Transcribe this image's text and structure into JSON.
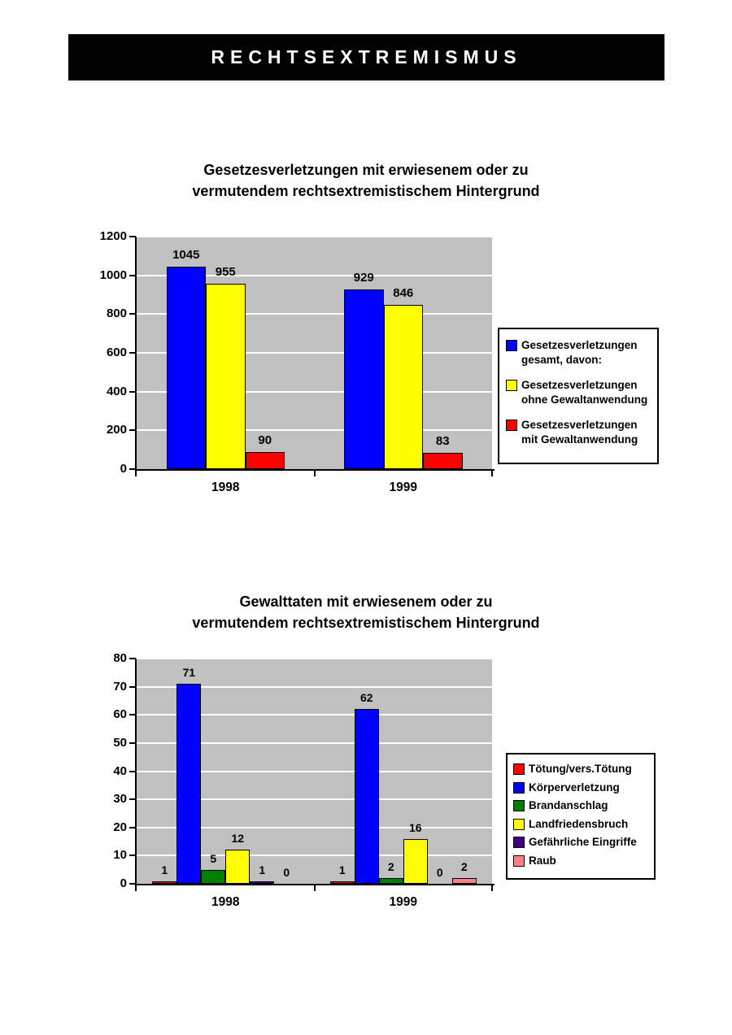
{
  "page": {
    "banner_title": "RECHTSEXTREMISMUS"
  },
  "chart_data": [
    {
      "type": "bar",
      "title": "Gesetzesverletzungen mit erwiesenem oder zu vermutendem rechtsextremistischem Hintergrund",
      "title_lines": [
        "Gesetzesverletzungen mit erwiesenem oder zu",
        "vermutendem rechtsextremistischem Hintergrund"
      ],
      "categories": [
        "1998",
        "1999"
      ],
      "series": [
        {
          "name": "Gesetzesverletzungen gesamt, davon:",
          "color": "#0000ff",
          "values": [
            1045,
            929
          ]
        },
        {
          "name": "Gesetzesverletzungen ohne Gewaltanwendung",
          "color": "#ffff00",
          "values": [
            955,
            846
          ]
        },
        {
          "name": "Gesetzesverletzungen mit Gewaltanwendung",
          "color": "#ff0000",
          "values": [
            90,
            83
          ]
        }
      ],
      "ylim": [
        0,
        1200
      ],
      "yticks": [
        0,
        200,
        400,
        600,
        800,
        1000,
        1200
      ],
      "grid": true,
      "legend_position": "right",
      "plot_bg": "#c0c0c0",
      "gridline_color": "#ffffff"
    },
    {
      "type": "bar",
      "title": "Gewalttaten mit erwiesenem oder zu vermutendem rechtsextremistischem Hintergrund",
      "title_lines": [
        "Gewalttaten mit erwiesenem oder zu",
        "vermutendem rechtsextremistischem Hintergrund"
      ],
      "categories": [
        "1998",
        "1999"
      ],
      "series": [
        {
          "name": "Tötung/vers.Tötung",
          "color": "#ff0000",
          "values": [
            1,
            1
          ]
        },
        {
          "name": "Körperverletzung",
          "color": "#0000ff",
          "values": [
            71,
            62
          ]
        },
        {
          "name": "Brandanschlag",
          "color": "#008000",
          "values": [
            5,
            2
          ]
        },
        {
          "name": "Landfriedensbruch",
          "color": "#ffff00",
          "values": [
            12,
            16
          ]
        },
        {
          "name": "Gefährliche Eingriffe",
          "color": "#400080",
          "values": [
            1,
            0
          ]
        },
        {
          "name": "Raub",
          "color": "#ff8080",
          "values": [
            0,
            2
          ]
        }
      ],
      "ylim": [
        0,
        80
      ],
      "yticks": [
        0,
        10,
        20,
        30,
        40,
        50,
        60,
        70,
        80
      ],
      "grid": true,
      "legend_position": "right",
      "plot_bg": "#c0c0c0",
      "gridline_color": "#ffffff"
    }
  ]
}
